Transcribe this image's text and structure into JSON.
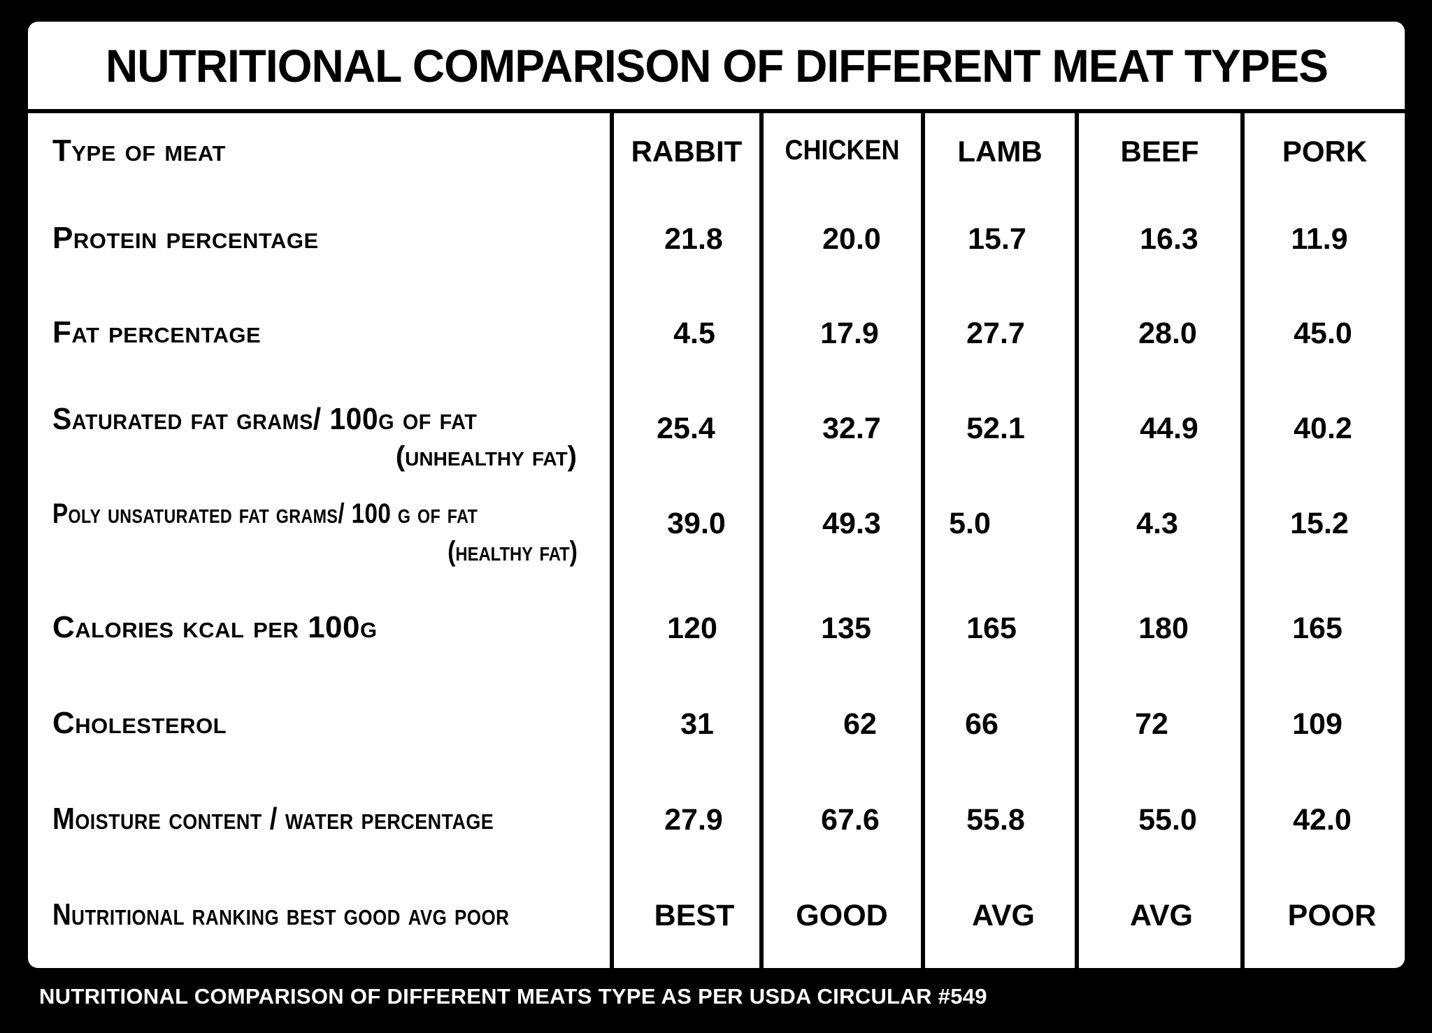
{
  "title": "NUTRITIONAL COMPARISON OF DIFFERENT MEAT TYPES",
  "header_label": "Type of meat",
  "columns": [
    "RABBIT",
    "CHICKEN",
    "LAMB",
    "BEEF",
    "PORK"
  ],
  "rows": [
    {
      "label": "Protein percentage",
      "sub": "",
      "values": [
        "21.8",
        "20.0",
        "15.7",
        "16.3",
        "11.9"
      ]
    },
    {
      "label": "Fat percentage",
      "sub": "",
      "values": [
        "4.5",
        "17.9",
        "27.7",
        "28.0",
        "45.0"
      ]
    },
    {
      "label": "Saturated fat grams/ 100g of fat",
      "sub": "(unhealthy fat)",
      "values": [
        "25.4",
        "32.7",
        "52.1",
        "44.9",
        "40.2"
      ]
    },
    {
      "label": "Poly unsaturated fat grams/ 100 g of fat",
      "sub": "(healthy fat)",
      "values": [
        "39.0",
        "49.3",
        "5.0",
        "4.3",
        "15.2"
      ]
    },
    {
      "label": "Calories kcal per 100g",
      "sub": "",
      "values": [
        "120",
        "135",
        "165",
        "180",
        "165"
      ]
    },
    {
      "label": "Cholesterol",
      "sub": "",
      "values": [
        "31",
        "62",
        "66",
        "72",
        "109"
      ]
    },
    {
      "label": "Moisture content / water percentage",
      "sub": "",
      "values": [
        "27.9",
        "67.6",
        "55.8",
        "55.0",
        "42.0"
      ]
    },
    {
      "label": "Nutritional ranking best good avg poor",
      "sub": "",
      "values": [
        "BEST",
        "GOOD",
        "AVG",
        "AVG",
        "POOR"
      ]
    }
  ],
  "footer": "NUTRITIONAL COMPARISON OF DIFFERENT MEATS TYPE AS PER USDA  CIRCULAR #549",
  "colors": {
    "background": "#000000",
    "sheet": "#ffffff",
    "text": "#000000",
    "footer_text": "#ffffff"
  }
}
